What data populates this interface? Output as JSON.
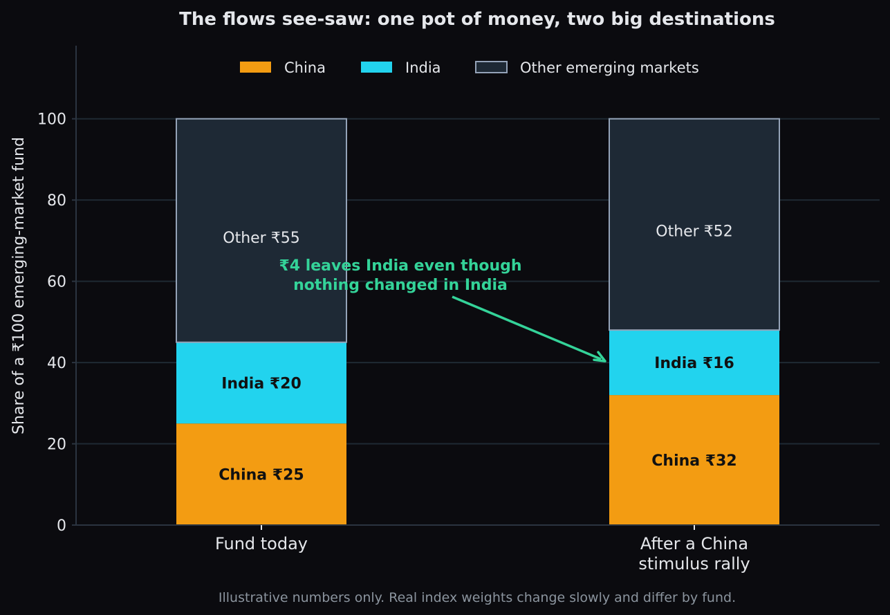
{
  "chart_data": {
    "type": "bar",
    "stacked": true,
    "title": "The flows see-saw: one pot of money, two big destinations",
    "xlabel": "",
    "ylabel": "Share of a ₹100 emerging-market fund",
    "ylim": [
      0,
      118
    ],
    "yticks": [
      0,
      20,
      40,
      60,
      80,
      100
    ],
    "categories": [
      "Fund today",
      "After a China stimulus rally"
    ],
    "category_lines": [
      [
        "Fund today"
      ],
      [
        "After a China",
        "stimulus rally"
      ]
    ],
    "series": [
      {
        "name": "China",
        "values": [
          25,
          32
        ],
        "labels": [
          "China ₹25",
          "China ₹32"
        ],
        "color": "#f39c12",
        "label_color": "#111111",
        "label_weight": "bold"
      },
      {
        "name": "India",
        "values": [
          20,
          16
        ],
        "labels": [
          "India ₹20",
          "India ₹16"
        ],
        "color": "#22d3ee",
        "label_color": "#111111",
        "label_weight": "bold"
      },
      {
        "name": "Other emerging markets",
        "values": [
          55,
          52
        ],
        "labels": [
          "Other ₹55",
          "Other ₹52"
        ],
        "color": "#1e2935",
        "edge": "#94a3b8",
        "label_color": "#e5e7eb",
        "label_weight": "normal"
      }
    ],
    "legend_position": "top-center",
    "grid": "horizontal",
    "annotation": {
      "lines": [
        "₹4 leaves India even though",
        "nothing changed in India"
      ],
      "color": "#34d399",
      "points_to": {
        "category": 1,
        "value": 40
      }
    },
    "footnote": "Illustrative numbers only. Real index weights change slowly and differ by fund."
  },
  "colors": {
    "background": "#0b0b0f",
    "grid": "#1f2a33",
    "axis": "#2b3440",
    "text": "#e5e7eb",
    "muted": "#8b949e"
  }
}
